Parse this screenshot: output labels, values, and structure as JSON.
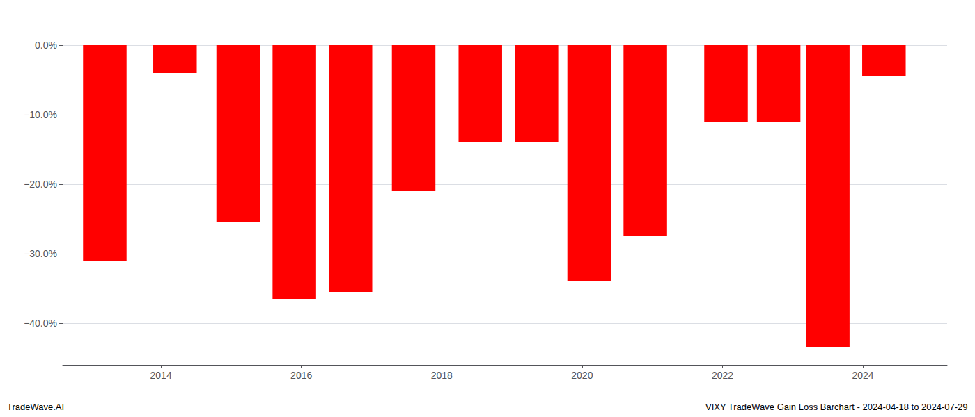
{
  "chart_data": {
    "type": "bar",
    "x": [
      2013.2,
      2014.2,
      2015.1,
      2015.9,
      2016.7,
      2017.6,
      2018.55,
      2019.35,
      2020.1,
      2020.9,
      2022.05,
      2022.8,
      2023.5,
      2024.3
    ],
    "values": [
      -31.0,
      -4.0,
      -25.5,
      -36.5,
      -35.5,
      -21.0,
      -14.0,
      -14.0,
      -34.0,
      -27.5,
      -11.0,
      -11.0,
      -43.5,
      -4.5
    ],
    "color": "#ff0000",
    "xlim": [
      2012.6,
      2025.2
    ],
    "xticks": [
      2014,
      2016,
      2018,
      2020,
      2022,
      2024
    ],
    "ylim": [
      -46,
      3.5
    ],
    "yticks": [
      {
        "value": 0,
        "label": "0.0%"
      },
      {
        "value": -10,
        "label": "−10.0%"
      },
      {
        "value": -20,
        "label": "−20.0%"
      },
      {
        "value": -30,
        "label": "−30.0%"
      },
      {
        "value": -40,
        "label": "−40.0%"
      }
    ],
    "grid": true,
    "annotations": [
      "TradeWave.AI",
      "VIXY TradeWave Gain Loss Barchart - 2024-04-18 to 2024-07-29"
    ]
  }
}
